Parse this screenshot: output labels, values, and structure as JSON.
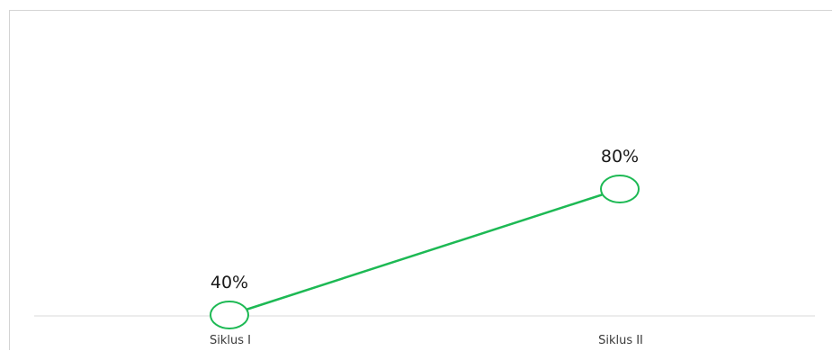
{
  "chart_data": {
    "type": "line",
    "categories": [
      "Siklus I",
      "Siklus II"
    ],
    "series": [
      {
        "values": [
          40,
          80
        ],
        "data_labels": [
          "40%",
          "80%"
        ],
        "color": "#1db954"
      }
    ],
    "title": "",
    "xlabel": "",
    "ylabel": "",
    "ylim": [
      0,
      100
    ],
    "grid": false,
    "legend": "none",
    "marker": "hollow-circle"
  }
}
